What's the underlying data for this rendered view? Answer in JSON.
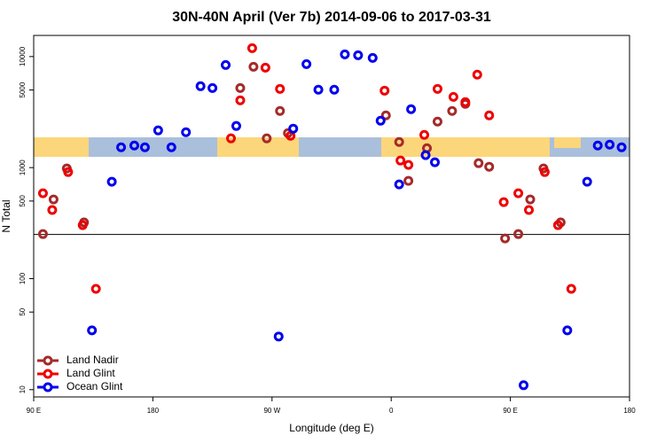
{
  "chart_data": {
    "type": "scatter",
    "title": "30N-40N April (Ver 7b)   2014-09-06 to 2017-03-31",
    "x_label": "Longitude (deg E)",
    "y_label": "N Total",
    "xlim": [
      90,
      540
    ],
    "ylim": [
      8.6,
      15500
    ],
    "log_y": true,
    "xticks": [
      {
        "value": 90,
        "label": "90 E"
      },
      {
        "value": 180,
        "label": "180"
      },
      {
        "value": 270,
        "label": "90 W"
      },
      {
        "value": 360,
        "label": "0"
      },
      {
        "value": 450,
        "label": "90 E"
      },
      {
        "value": 540,
        "label": "180"
      }
    ],
    "yticks": [
      10,
      50,
      100,
      500,
      1000,
      5000,
      10000
    ],
    "reference_line": 250,
    "legend": "bottom-left",
    "series": [
      {
        "name": "Land Nadir",
        "color": "#a52a2a",
        "x": [
          97,
          105,
          115,
          128,
          246,
          256,
          276,
          266,
          282,
          356,
          366,
          373,
          387,
          395,
          406,
          416,
          426,
          434,
          446,
          456,
          465,
          475,
          488
        ],
        "values": [
          252,
          517,
          982,
          321,
          5210,
          8090,
          3236,
          1833,
          2046,
          2951,
          1702,
          759,
          1497,
          2596,
          3236,
          3750,
          1096,
          1018,
          230,
          252,
          517,
          982,
          321
        ]
      },
      {
        "name": "Land Glint",
        "color": "#ee0000",
        "x": [
          97,
          104,
          116,
          127,
          137,
          239,
          246,
          255,
          265,
          276,
          284,
          355,
          367,
          373,
          385,
          395,
          407,
          416,
          425,
          434,
          445,
          456,
          464,
          476,
          486,
          496
        ],
        "values": [
          587,
          415,
          912,
          303,
          80.9,
          1833,
          4036,
          11900,
          7943,
          5117,
          1936,
          4932,
          1158,
          1057,
          1972,
          5117,
          4335,
          3890,
          6871,
          2951,
          489,
          587,
          415,
          912,
          303,
          80.9
        ]
      },
      {
        "name": "Ocean Glint",
        "color": "#0000ee",
        "x": [
          134,
          149,
          156,
          166,
          174,
          184,
          194,
          205,
          216,
          225,
          235,
          243,
          275,
          286,
          296,
          305,
          317,
          325,
          335,
          346,
          352,
          366,
          375,
          386,
          393,
          460,
          493,
          508,
          516,
          525,
          534
        ],
        "values": [
          34.2,
          746,
          1524,
          1581,
          1524,
          2163,
          1524,
          2084,
          5408,
          5210,
          8400,
          2371,
          30.1,
          2243,
          8551,
          5027,
          5027,
          10470,
          10280,
          9727,
          2644,
          706,
          3357,
          1294,
          1117,
          10.96,
          34.2,
          746,
          1581,
          1611,
          1524
        ]
      }
    ]
  }
}
